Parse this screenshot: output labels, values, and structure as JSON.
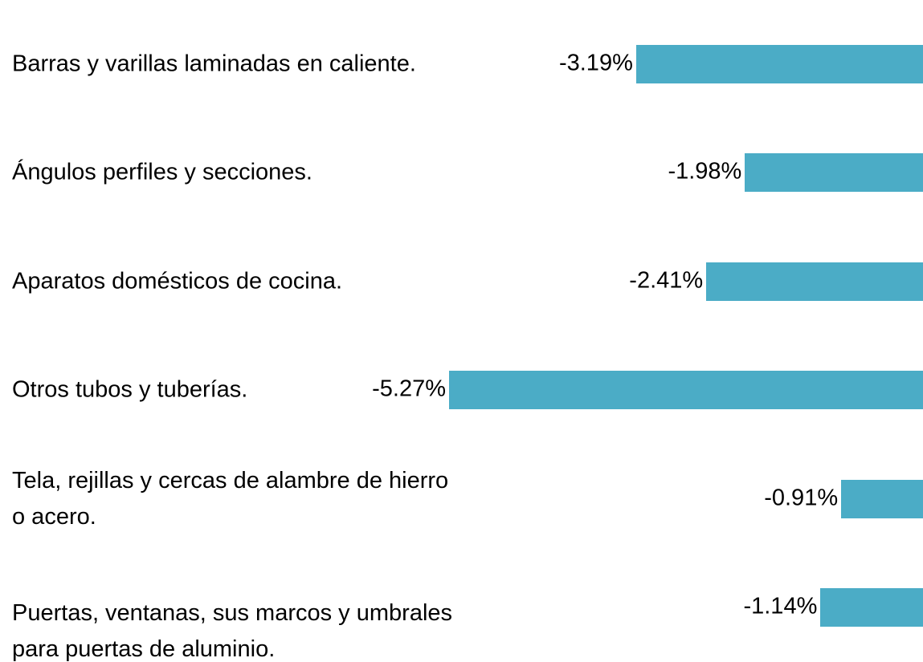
{
  "chart_data": {
    "type": "bar",
    "orientation": "horizontal",
    "categories": [
      "Barras y varillas laminadas en caliente.",
      "Ángulos perfiles y secciones.",
      "Aparatos domésticos de cocina.",
      "Otros tubos y tuberías.",
      "Tela, rejillas y cercas de alambre de hierro o acero.",
      "Puertas, ventanas, sus marcos y umbrales para puertas de aluminio."
    ],
    "values": [
      -3.19,
      -1.98,
      -2.41,
      -5.27,
      -0.91,
      -1.14
    ],
    "value_labels": [
      "-3.19%",
      "-1.98%",
      "-2.41%",
      "-5.27%",
      "-0.91%",
      "-1.14%"
    ],
    "color": "#4bacc6"
  }
}
